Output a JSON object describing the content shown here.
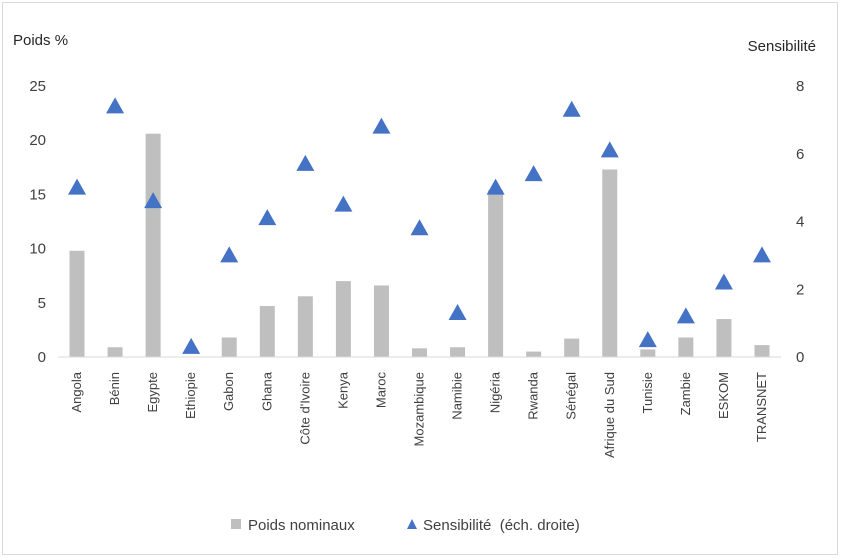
{
  "chart_data": {
    "type": "bar",
    "title": "",
    "ylabel_left": "Poids %",
    "ylabel_right": "Sensibilité",
    "ylim_left": [
      0,
      25
    ],
    "yticks_left": [
      0,
      5,
      10,
      15,
      20,
      25
    ],
    "ylim_right": [
      0,
      8
    ],
    "yticks_right": [
      0,
      2,
      4,
      6,
      8
    ],
    "grid": false,
    "legend_position": "bottom",
    "categories": [
      "Angola",
      "Bénin",
      "Egypte",
      "Ethiopie",
      "Gabon",
      "Ghana",
      "Côte d'Ivoire",
      "Kenya",
      "Maroc",
      "Mozambique",
      "Namibie",
      "Nigéria",
      "Rwanda",
      "Sénégal",
      "Afrique du Sud",
      "Tunisie",
      "Zambie",
      "ESKOM",
      "TRANSNET"
    ],
    "series": [
      {
        "name": "Poids nominaux",
        "type": "bar",
        "axis": "left",
        "color": "#bfbfbf",
        "values": [
          9.8,
          0.9,
          20.6,
          0.0,
          1.8,
          4.7,
          5.6,
          7.0,
          6.6,
          0.8,
          0.9,
          15.4,
          0.5,
          1.7,
          17.3,
          0.7,
          1.8,
          3.5,
          1.1
        ]
      },
      {
        "name": "Sensibilité  (éch. droite)",
        "type": "scatter",
        "axis": "right",
        "marker": "triangle",
        "color": "#4472c4",
        "values": [
          5.0,
          7.4,
          4.6,
          0.3,
          3.0,
          4.1,
          5.7,
          4.5,
          6.8,
          3.8,
          1.3,
          5.0,
          5.4,
          7.3,
          6.1,
          0.5,
          1.2,
          2.2,
          3.0
        ]
      }
    ]
  }
}
